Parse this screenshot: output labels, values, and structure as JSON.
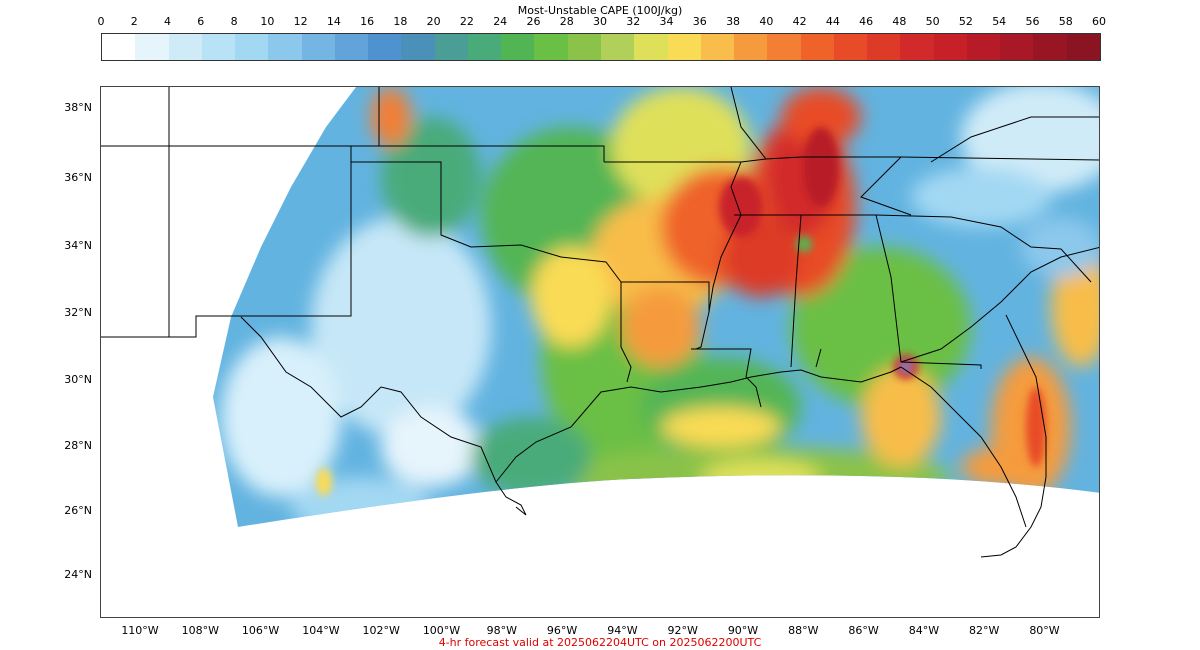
{
  "colorbar": {
    "title": "Most-Unstable CAPE (100J/kg)",
    "ticks": [
      "0",
      "2",
      "4",
      "6",
      "8",
      "10",
      "12",
      "14",
      "16",
      "18",
      "20",
      "22",
      "24",
      "26",
      "28",
      "30",
      "32",
      "34",
      "36",
      "38",
      "40",
      "42",
      "44",
      "46",
      "48",
      "50",
      "52",
      "54",
      "56",
      "58",
      "60"
    ],
    "colors": [
      "#ffffff",
      "#e6f4fc",
      "#d0ebf8",
      "#b8e2f6",
      "#a3d8f3",
      "#8cc8ec",
      "#75b5e3",
      "#62a3da",
      "#4e92cf",
      "#4b90b8",
      "#4a9e95",
      "#4aab7a",
      "#52b554",
      "#6abf45",
      "#8ac24a",
      "#b0d05a",
      "#dfe05a",
      "#fadb55",
      "#f8bd4a",
      "#f59b3e",
      "#f37f35",
      "#ef622a",
      "#e84b28",
      "#dd3a28",
      "#d22a2b",
      "#c82029",
      "#b81b28",
      "#a81826",
      "#981624",
      "#8a1422"
    ]
  },
  "axes": {
    "lat_labels": [
      "38°N",
      "36°N",
      "34°N",
      "32°N",
      "30°N",
      "28°N",
      "26°N",
      "24°N"
    ],
    "lon_labels": [
      "110°W",
      "108°W",
      "106°W",
      "104°W",
      "102°W",
      "100°W",
      "98°W",
      "96°W",
      "94°W",
      "92°W",
      "90°W",
      "88°W",
      "86°W",
      "84°W",
      "82°W",
      "80°W"
    ]
  },
  "footer": "4-hr forecast valid at 2025062204UTC on 2025062200UTC"
}
